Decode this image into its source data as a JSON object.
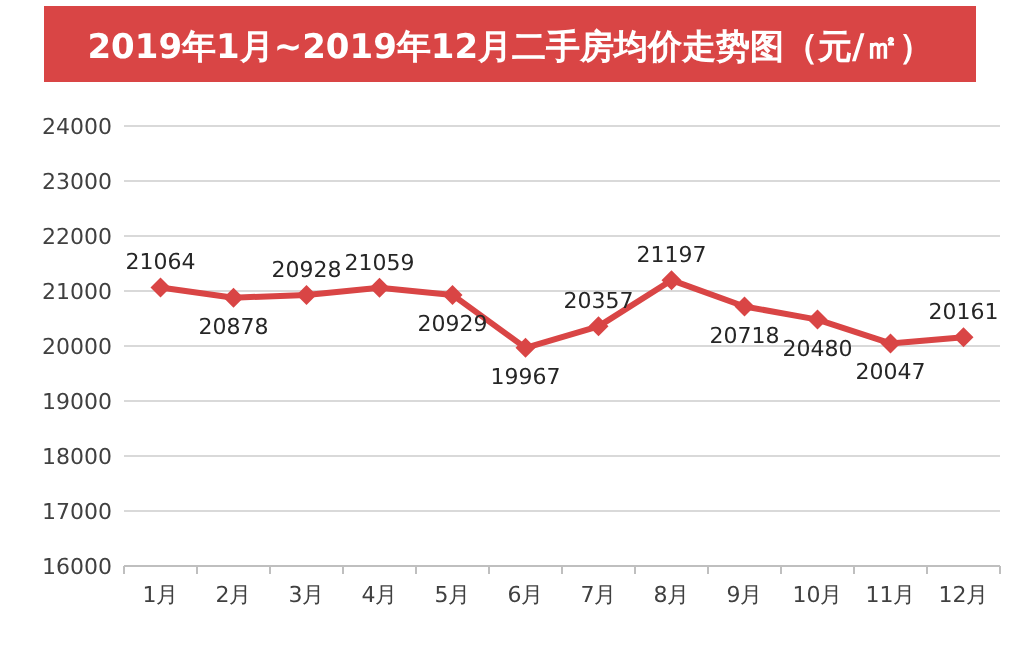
{
  "chart_data": {
    "type": "line",
    "title": "2019年1月~2019年12月二手房均价走势图（元/㎡）",
    "categories": [
      "1月",
      "2月",
      "3月",
      "4月",
      "5月",
      "6月",
      "7月",
      "8月",
      "9月",
      "10月",
      "11月",
      "12月"
    ],
    "series": [
      {
        "color": "#d94545",
        "values": [
          21064,
          20878,
          20928,
          21059,
          20929,
          19967,
          20357,
          21197,
          20718,
          20480,
          20047,
          20161
        ]
      }
    ],
    "ylim": [
      16000,
      24000
    ],
    "yticks": [
      16000,
      17000,
      18000,
      19000,
      20000,
      21000,
      22000,
      23000,
      24000
    ],
    "grid": "y",
    "marker": "diamond",
    "data_labels": true
  }
}
